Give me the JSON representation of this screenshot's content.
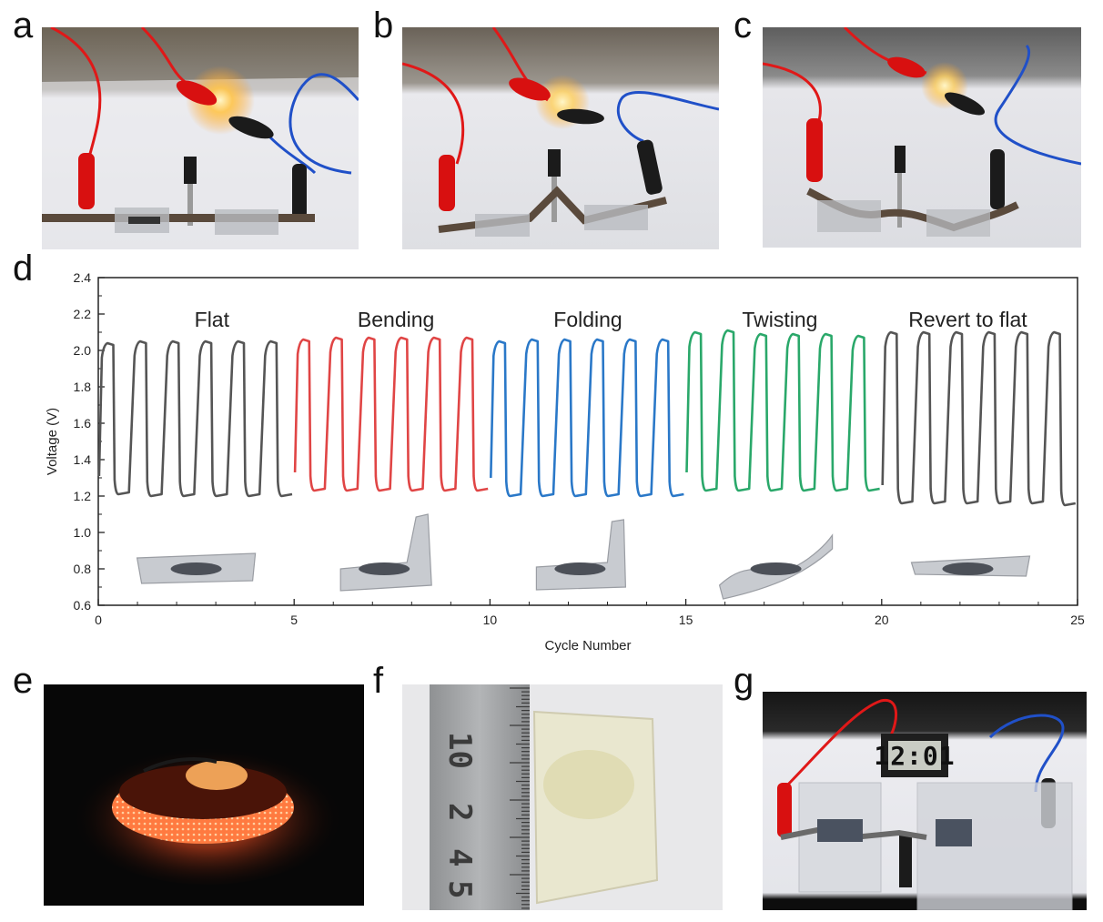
{
  "panels": {
    "a": "a",
    "b": "b",
    "c": "c",
    "d": "d",
    "e": "e",
    "f": "f",
    "g": "g"
  },
  "panel_f": {
    "ruler_numbers": [
      "10",
      "2",
      "4",
      "5"
    ]
  },
  "panel_g": {
    "clock_display": "12:01"
  },
  "colors": {
    "flat": "#555555",
    "bending": "#e04545",
    "folding": "#2a78c8",
    "twisting": "#2aa86a",
    "revert": "#555555"
  },
  "chart_data": {
    "type": "line",
    "xlabel": "Cycle Number",
    "ylabel": "Voltage (V)",
    "xlim": [
      0,
      25
    ],
    "ylim": [
      0.6,
      2.4
    ],
    "xticks": [
      "0",
      "5",
      "10",
      "15",
      "20",
      "25"
    ],
    "yticks": [
      "0.6",
      "0.8",
      "1.0",
      "1.2",
      "1.4",
      "1.6",
      "1.8",
      "2.0",
      "2.2",
      "2.4"
    ],
    "annotations": [
      "Flat",
      "Bending",
      "Folding",
      "Twisting",
      "Revert to flat"
    ],
    "series": [
      {
        "name": "Flat",
        "color": "#555555",
        "x_range": [
          0,
          5
        ],
        "cycles": 6,
        "high": [
          2.04,
          2.05,
          2.05,
          2.05,
          2.05,
          2.05
        ],
        "low": [
          1.21,
          1.2,
          1.2,
          1.2,
          1.2,
          1.2
        ]
      },
      {
        "name": "Bending",
        "color": "#e04545",
        "x_range": [
          5,
          10
        ],
        "cycles": 6,
        "high": [
          2.06,
          2.07,
          2.07,
          2.07,
          2.07,
          2.07
        ],
        "low": [
          1.23,
          1.23,
          1.23,
          1.23,
          1.23,
          1.23
        ]
      },
      {
        "name": "Folding",
        "color": "#2a78c8",
        "x_range": [
          10,
          15
        ],
        "cycles": 6,
        "high": [
          2.05,
          2.06,
          2.06,
          2.06,
          2.06,
          2.06
        ],
        "low": [
          1.2,
          1.2,
          1.2,
          1.2,
          1.2,
          1.2
        ]
      },
      {
        "name": "Twisting",
        "color": "#2aa86a",
        "x_range": [
          15,
          20
        ],
        "cycles": 6,
        "high": [
          2.1,
          2.11,
          2.09,
          2.09,
          2.09,
          2.08
        ],
        "low": [
          1.23,
          1.23,
          1.23,
          1.23,
          1.23,
          1.23
        ]
      },
      {
        "name": "Revert to flat",
        "color": "#555555",
        "x_range": [
          20,
          25
        ],
        "cycles": 6,
        "high": [
          2.1,
          2.1,
          2.1,
          2.1,
          2.1,
          2.1
        ],
        "low": [
          1.16,
          1.16,
          1.16,
          1.16,
          1.16,
          1.15
        ]
      }
    ]
  }
}
